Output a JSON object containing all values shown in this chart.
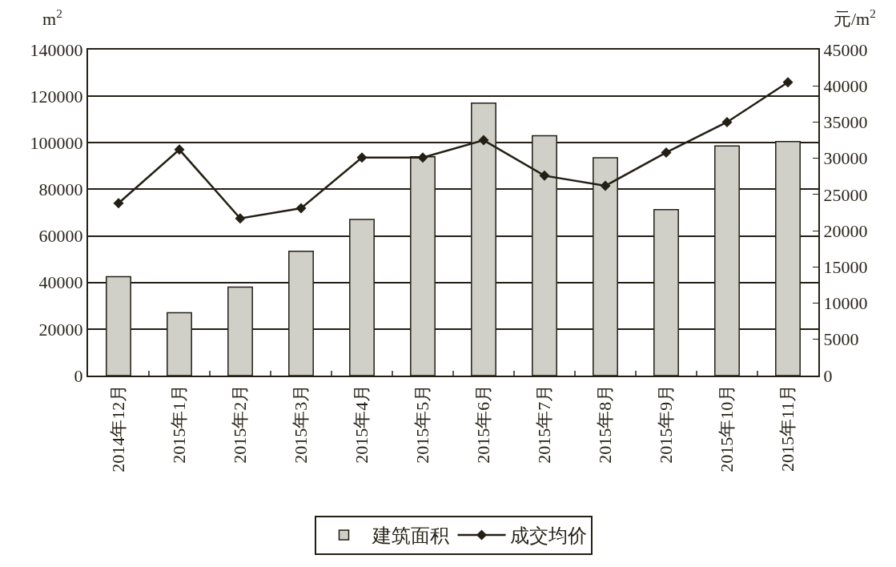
{
  "chart_data": {
    "type": "bar",
    "ylabel": "m$^{2}$",
    "y2label": "元/m$^{2}$",
    "categories": [
      "2014年12月",
      "2015年1月",
      "2015年2月",
      "2015年3月",
      "2015年4月",
      "2015年5月",
      "2015年6月",
      "2015年7月",
      "2015年8月",
      "2015年9月",
      "2015年10月",
      "2015年11月"
    ],
    "series": [
      {
        "name": "建筑面积",
        "color": "#d0d0c8",
        "values": [
          42500,
          27000,
          38000,
          53400,
          67100,
          94000,
          117000,
          103000,
          93600,
          71300,
          98600,
          100500
        ]
      },
      {
        "name": "成交均价",
        "type": "line",
        "axis": "y2",
        "color": "#231f14",
        "marker": "diamond",
        "values": [
          23800,
          31200,
          21700,
          23100,
          30100,
          30100,
          32500,
          27600,
          26200,
          30800,
          35000,
          40500
        ]
      }
    ],
    "ylim": [
      0,
      140000
    ],
    "yticks": [
      0,
      20000,
      40000,
      60000,
      80000,
      100000,
      120000,
      140000
    ],
    "y2lim": [
      0,
      45000
    ],
    "y2ticks": [
      0,
      5000,
      10000,
      15000,
      20000,
      25000,
      30000,
      35000,
      40000,
      45000
    ],
    "grid": "y",
    "legend": "bottom"
  }
}
